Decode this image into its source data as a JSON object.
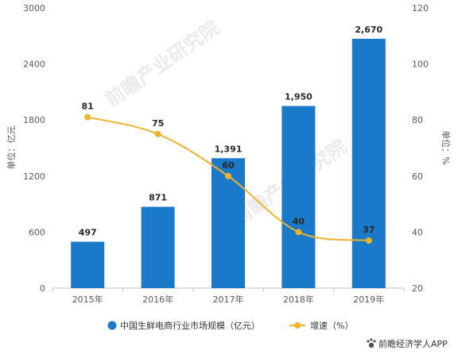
{
  "chart_data": {
    "type": "bar",
    "categories": [
      "2015年",
      "2016年",
      "2017年",
      "2018年",
      "2019年"
    ],
    "series": [
      {
        "name": "中国生鲜电商行业市场规模（亿元）",
        "type": "bar",
        "axis": "left",
        "values": [
          497,
          871,
          1391,
          1950,
          2670
        ],
        "labels": [
          "497",
          "871",
          "1,391",
          "1,950",
          "2,670"
        ]
      },
      {
        "name": "增速（%）",
        "type": "line",
        "axis": "right",
        "values": [
          81,
          75,
          60,
          40,
          37
        ],
        "labels": [
          "81",
          "75",
          "60",
          "40",
          "37"
        ]
      }
    ],
    "title": "",
    "ylabel": "单位：亿元",
    "y2label": "单位：%",
    "ylim": [
      0,
      3000
    ],
    "y2lim": [
      20,
      120
    ],
    "yticks": [
      "0",
      "600",
      "1200",
      "1800",
      "2400",
      "3000"
    ],
    "y2ticks": [
      "20",
      "40",
      "60",
      "80",
      "100",
      "120"
    ],
    "legend": "bottom",
    "grid": false
  },
  "colors": {
    "bar": "#1a7ac9",
    "line": "#f0b22a"
  },
  "watermark": {
    "text": "前瞻产业研究院"
  },
  "credit": {
    "icon": "paw-icon",
    "text": "前瞻经济学人APP"
  }
}
